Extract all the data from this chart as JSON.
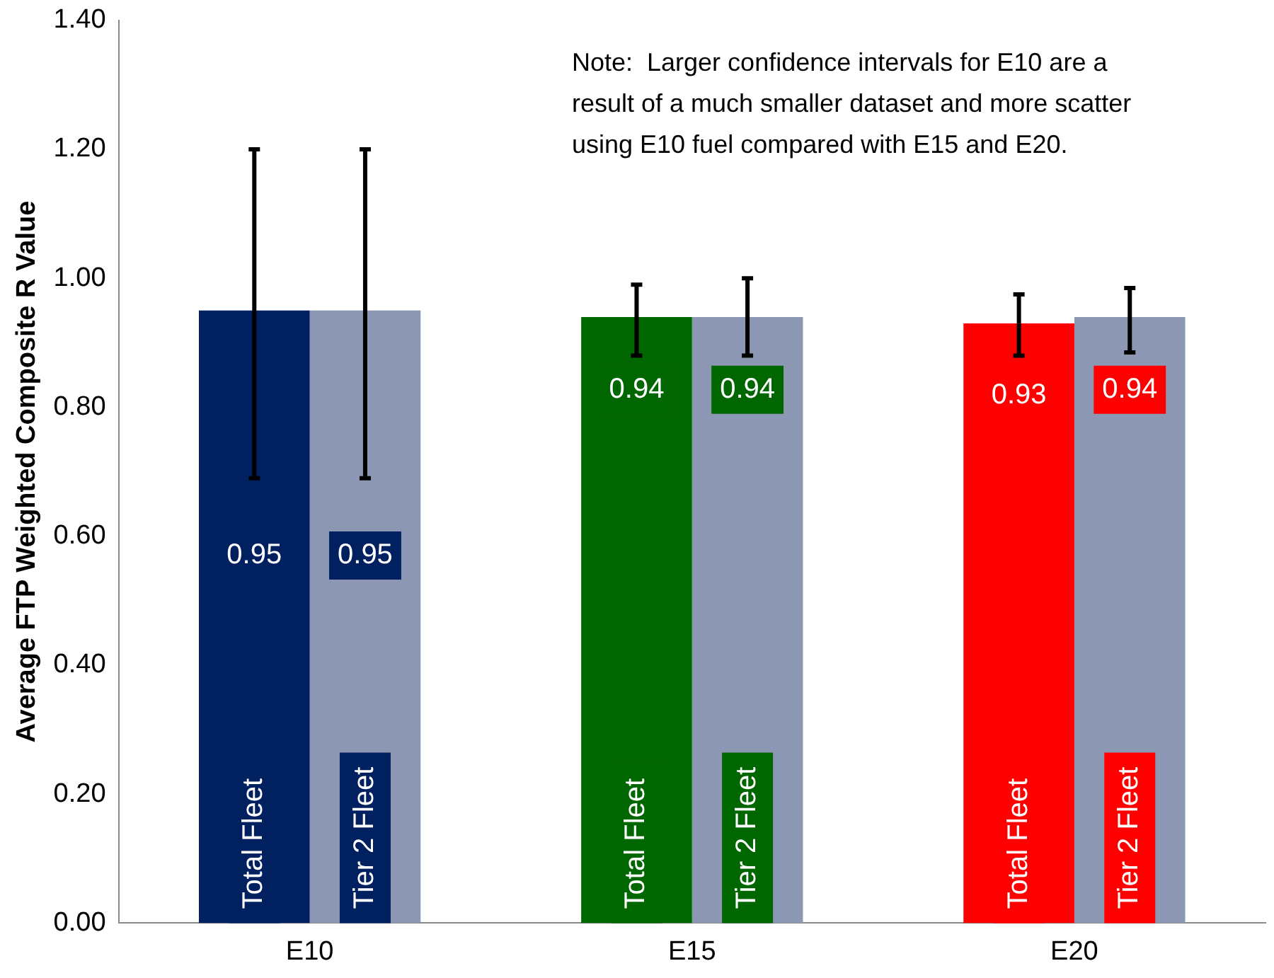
{
  "chart_data": {
    "type": "bar",
    "ylabel": "Average FTP Weighted Composite R Value",
    "categories": [
      "E10",
      "E15",
      "E20"
    ],
    "series": [
      {
        "name": "Total Fleet",
        "colors": [
          "#002060",
          "#006600",
          "#ff0000"
        ],
        "values": [
          0.95,
          0.94,
          0.93
        ],
        "errors": [
          [
            0.69,
            1.2
          ],
          [
            0.88,
            0.99
          ],
          [
            0.88,
            0.975
          ]
        ]
      },
      {
        "name": "Tier 2 Fleet",
        "color": "#8c97b4",
        "values": [
          0.95,
          0.94,
          0.94
        ],
        "errors": [
          [
            0.69,
            1.2
          ],
          [
            0.88,
            1.0
          ],
          [
            0.885,
            0.985
          ]
        ]
      }
    ],
    "ylim": [
      0,
      1.4
    ],
    "yticks": [
      {
        "value": 0,
        "label": "0.00"
      },
      {
        "value": 0.2,
        "label": "0.20"
      },
      {
        "value": 0.4,
        "label": "0.40"
      },
      {
        "value": 0.6,
        "label": "0.60"
      },
      {
        "value": 0.8,
        "label": "0.80"
      },
      {
        "value": 1.0,
        "label": "1.00"
      },
      {
        "value": 1.2,
        "label": "1.20"
      },
      {
        "value": 1.4,
        "label": "1.40"
      }
    ],
    "grid": false,
    "legend": false,
    "data_labels": true,
    "annotations": [
      "Note:  Larger confidence intervals for E10 are a\nresult of a much smaller dataset and more scatter\nusing E10 fuel compared with E15 and E20."
    ]
  }
}
